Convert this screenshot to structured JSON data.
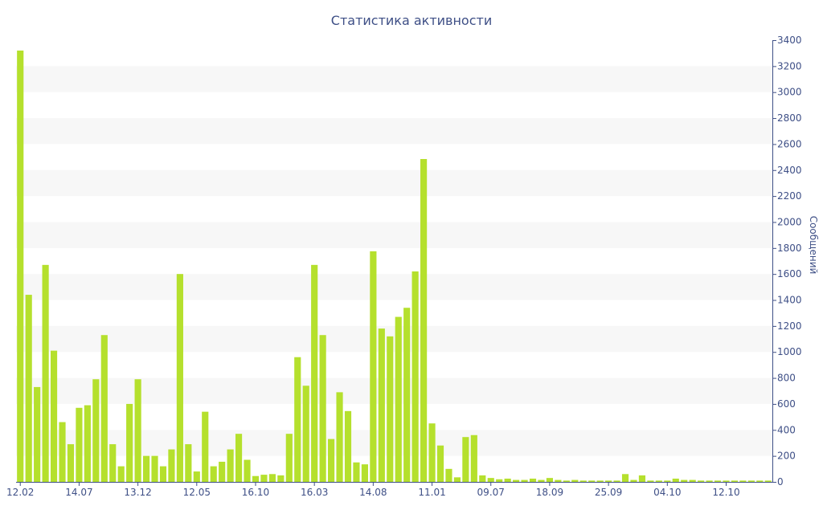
{
  "chart_data": {
    "type": "bar",
    "title": "Статистика активности",
    "xlabel": "",
    "ylabel": "Сообщений",
    "y_axis_side": "right",
    "ylim": [
      0,
      3400
    ],
    "y_ticks": [
      0,
      200,
      400,
      600,
      800,
      1000,
      1200,
      1400,
      1600,
      1800,
      2000,
      2200,
      2400,
      2600,
      2800,
      3000,
      3200,
      3400
    ],
    "x_tick_labels": [
      {
        "label": "12.02",
        "index": 0
      },
      {
        "label": "14.07",
        "index": 7
      },
      {
        "label": "13.12",
        "index": 14
      },
      {
        "label": "12.05",
        "index": 21
      },
      {
        "label": "16.10",
        "index": 28
      },
      {
        "label": "16.03",
        "index": 35
      },
      {
        "label": "14.08",
        "index": 42
      },
      {
        "label": "11.01",
        "index": 49
      },
      {
        "label": "09.07",
        "index": 56
      },
      {
        "label": "18.09",
        "index": 63
      },
      {
        "label": "25.09",
        "index": 70
      },
      {
        "label": "04.10",
        "index": 77
      },
      {
        "label": "12.10",
        "index": 84
      }
    ],
    "grid": "alternating horizontal bands",
    "bar_color": "#b5e02d",
    "values": [
      3320,
      1440,
      730,
      1670,
      1010,
      460,
      290,
      570,
      590,
      790,
      1130,
      290,
      120,
      600,
      790,
      200,
      200,
      120,
      250,
      1600,
      290,
      80,
      540,
      120,
      155,
      250,
      370,
      170,
      45,
      55,
      60,
      50,
      370,
      960,
      740,
      1670,
      1130,
      330,
      690,
      545,
      150,
      135,
      1775,
      1180,
      1120,
      1270,
      1340,
      1620,
      2485,
      450,
      280,
      100,
      35,
      345,
      360,
      50,
      30,
      20,
      25,
      15,
      15,
      25,
      15,
      30,
      15,
      10,
      15,
      10,
      10,
      10,
      10,
      10,
      60,
      15,
      50,
      10,
      10,
      10,
      25,
      15,
      15,
      10,
      10,
      10,
      10,
      10,
      10,
      10,
      10,
      10
    ]
  }
}
